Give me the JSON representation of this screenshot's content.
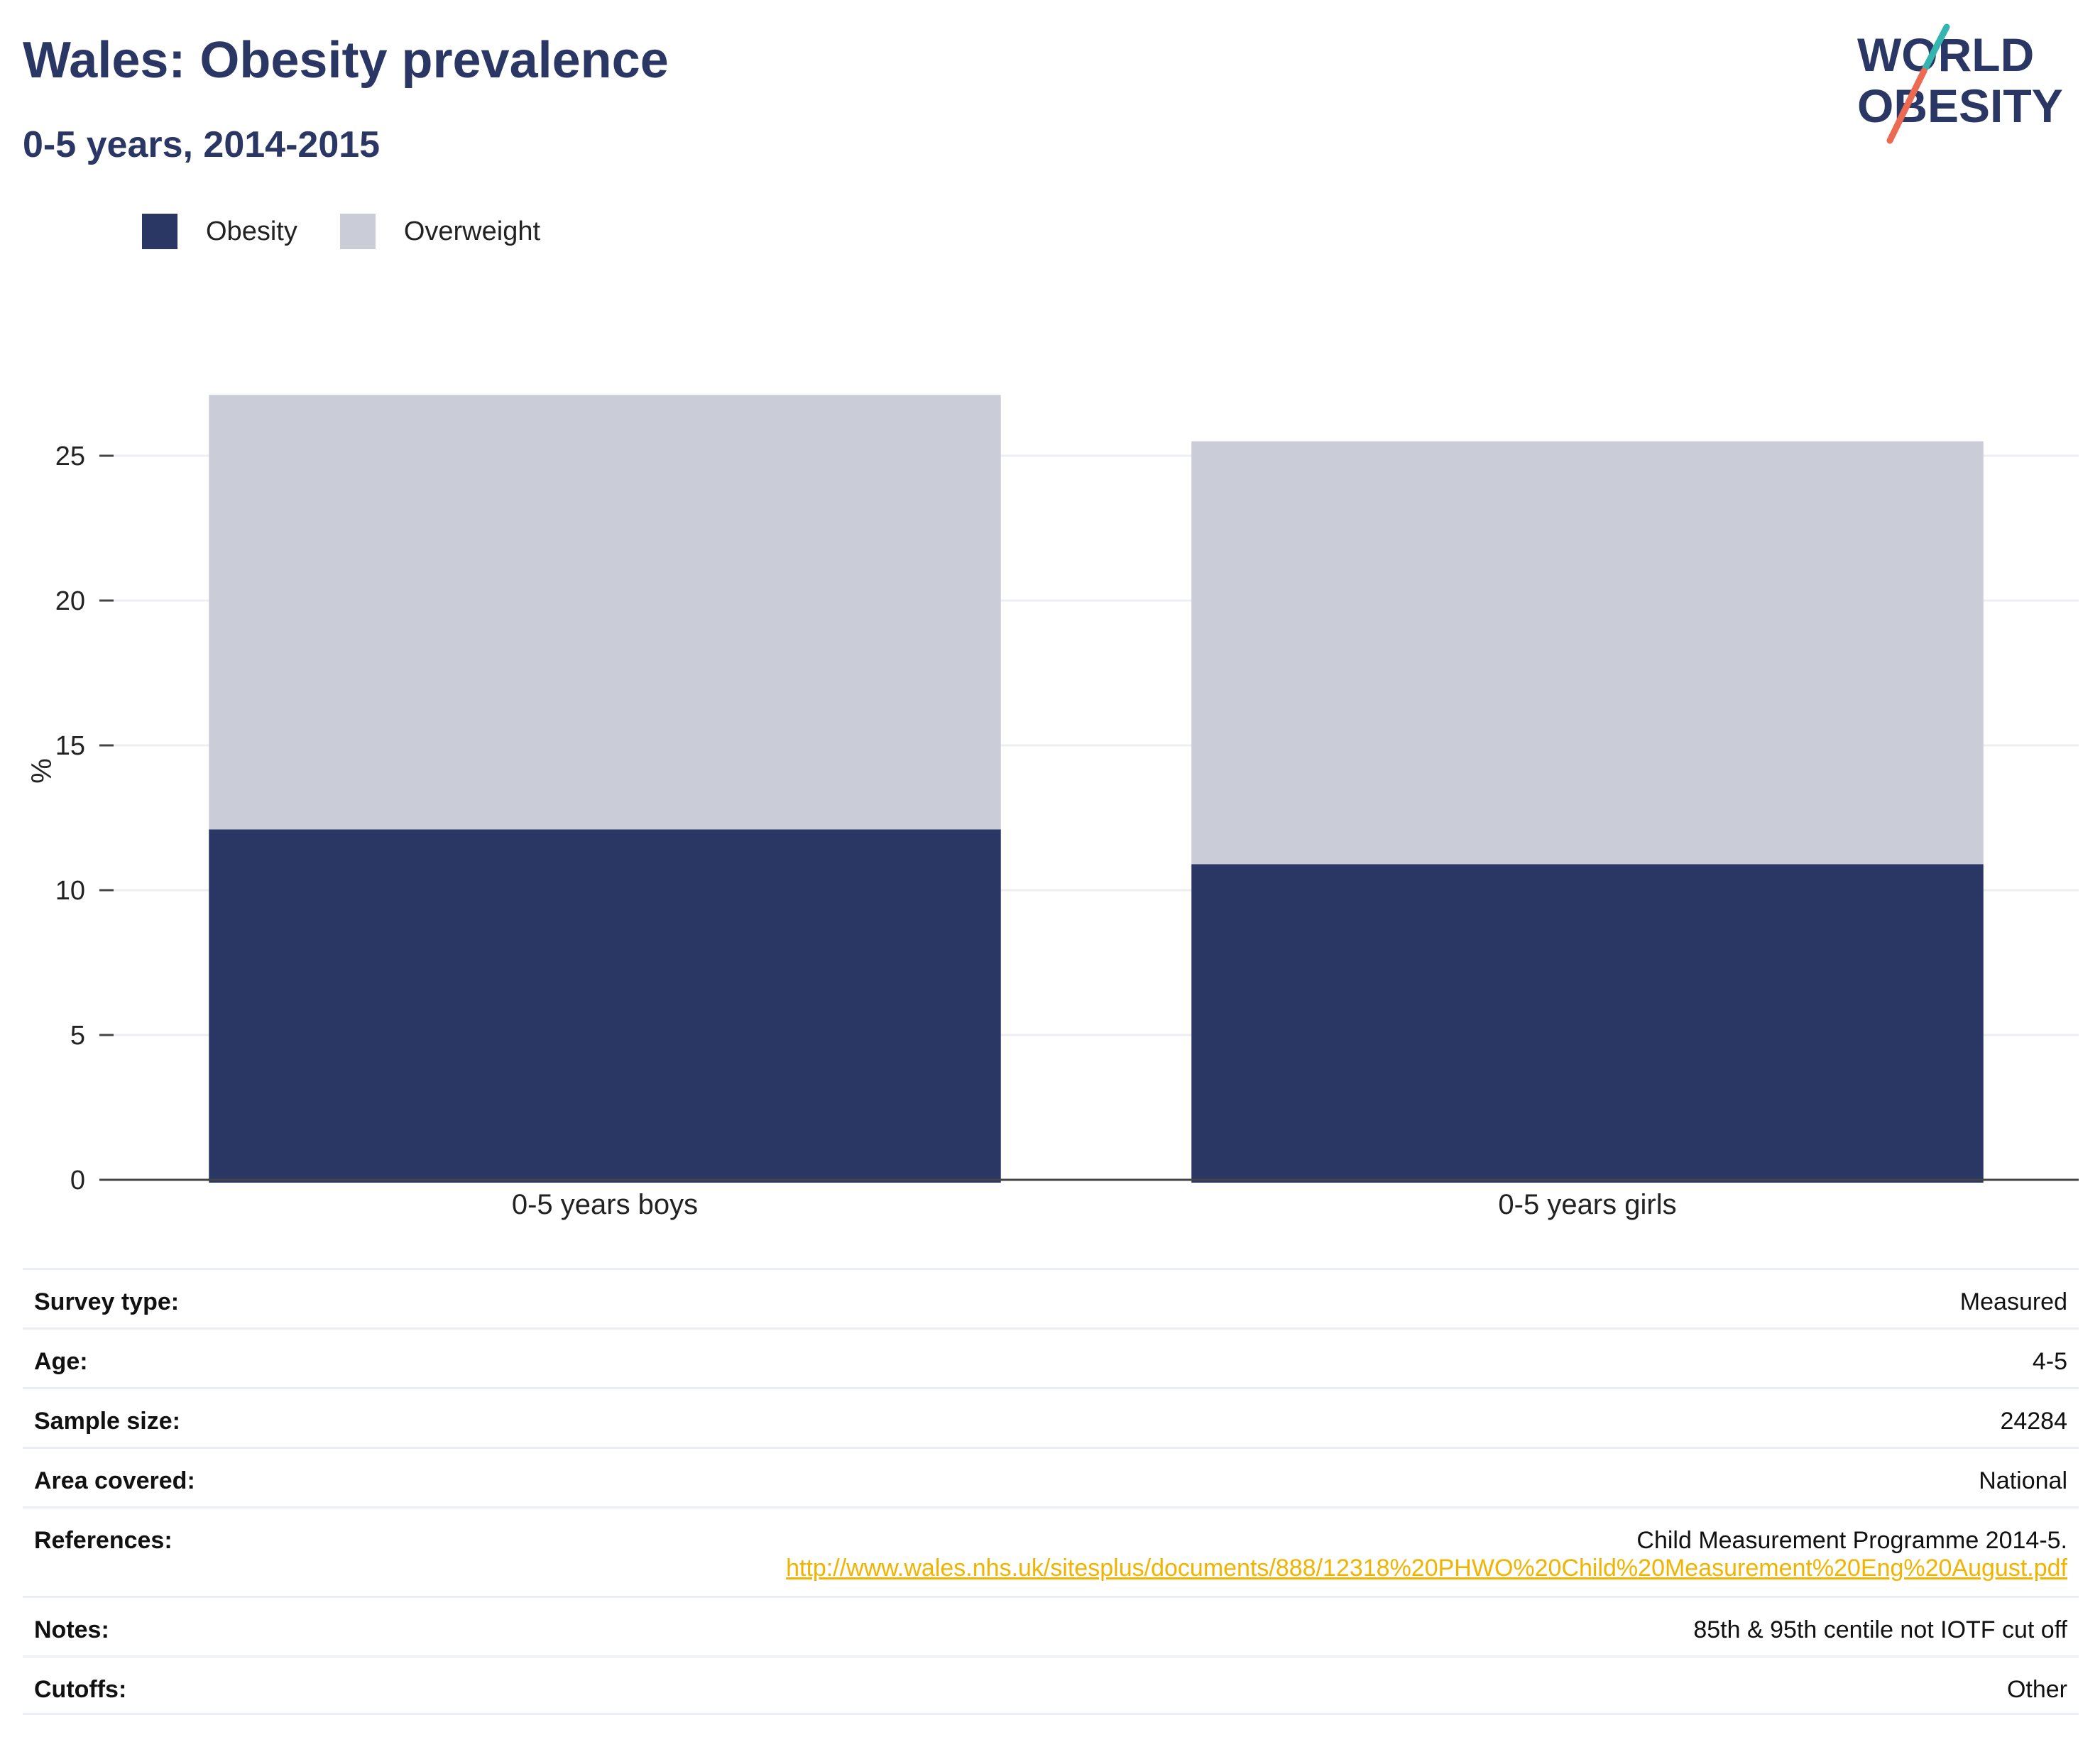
{
  "title": "Wales: Obesity prevalence",
  "subtitle": "0-5 years, 2014-2015",
  "logo": {
    "line1": "WORLD",
    "line2": "OBESITY",
    "text_color": "#2a3664",
    "accent_teal": "#34b5b0",
    "accent_coral": "#ec6a52"
  },
  "colors": {
    "obesity": "#2a3664",
    "overweight": "#cacdd8",
    "link": "#f0b400",
    "grid": "#eceef2",
    "axis": "#444444"
  },
  "chart_data": {
    "type": "bar",
    "stacked": true,
    "categories": [
      "0-5 years boys",
      "0-5 years girls"
    ],
    "series": [
      {
        "name": "Obesity",
        "values": [
          12.1,
          10.9
        ]
      },
      {
        "name": "Overweight",
        "values": [
          15.0,
          14.6
        ]
      }
    ],
    "ylabel": "%",
    "xlabel": "",
    "ylim": [
      0,
      27.5
    ],
    "yticks": [
      0,
      5,
      10,
      15,
      20,
      25
    ],
    "grid": true,
    "legend_position": "top-left"
  },
  "info": [
    {
      "label": "Survey type:",
      "value": "Measured"
    },
    {
      "label": "Age:",
      "value": "4-5"
    },
    {
      "label": "Sample size:",
      "value": "24284"
    },
    {
      "label": "Area covered:",
      "value": "National"
    },
    {
      "label": "References:",
      "value": "Child Measurement Programme 2014-5.",
      "link": "http://www.wales.nhs.uk/sitesplus/documents/888/12318%20PHWO%20Child%20Measurement%20Eng%20August.pdf"
    },
    {
      "label": "Notes:",
      "value": "85th & 95th centile not IOTF cut off"
    },
    {
      "label": "Cutoffs:",
      "value": "Other"
    }
  ]
}
